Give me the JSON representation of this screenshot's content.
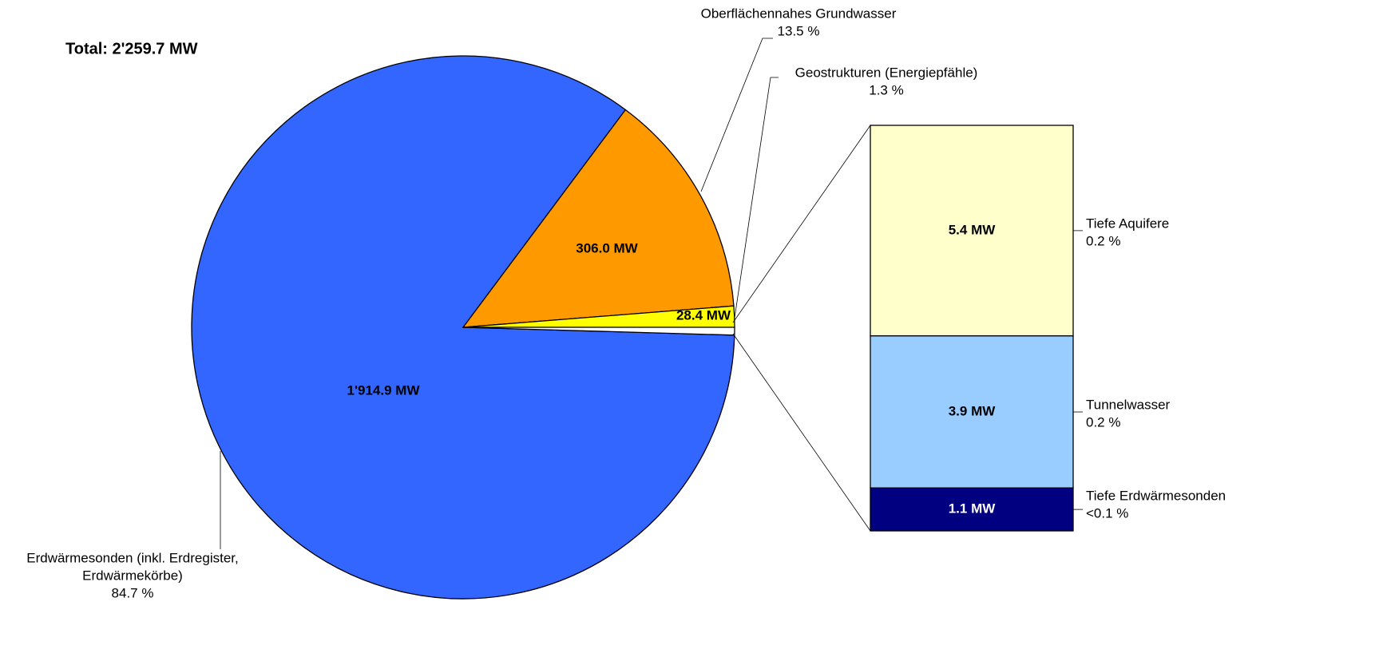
{
  "chart_data": {
    "type": "pie_of_bar",
    "title": "Total: 2'259.7 MW",
    "categories": [
      [
        "Erdwärmesonden (inkl. Erdregister,",
        "Erdwärmekörbe)"
      ],
      [
        "Oberflächennahes Grundwasser"
      ],
      [
        "Geostrukturen (Energiepfähle)"
      ],
      null
    ],
    "values": [
      1914.9,
      306.0,
      28.4,
      10.4
    ],
    "value_labels": [
      "1'914.9 MW",
      "306.0 MW",
      "28.4 MW",
      null
    ],
    "percent_labels": [
      "84.7 %",
      "13.5 %",
      "1.3 %",
      null
    ],
    "colors": [
      "#3366ff",
      "#ff9900",
      "#ffff00",
      "#ffffff"
    ],
    "breakdown": {
      "categories": [
        "Tiefe Aquifere",
        "Tunnelwasser",
        "Tiefe Erdwärmesonden"
      ],
      "values": [
        5.4,
        3.9,
        1.1
      ],
      "value_labels": [
        "5.4 MW",
        "3.9 MW",
        "1.1 MW"
      ],
      "percent_labels": [
        "0.2 %",
        "0.2 %",
        "<0.1 %"
      ],
      "colors": [
        "#ffffcc",
        "#99ccff",
        "#000080"
      ]
    }
  }
}
